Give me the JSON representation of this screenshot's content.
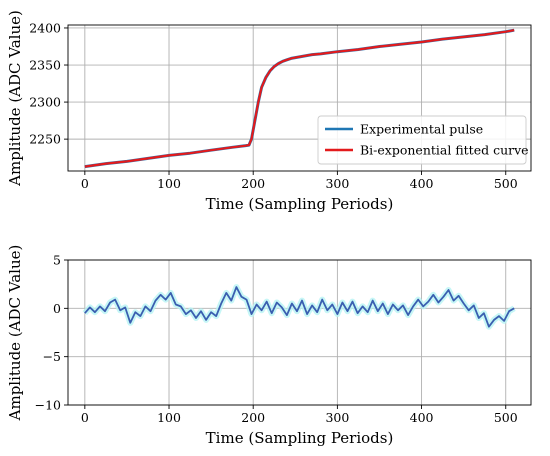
{
  "chart_data": [
    {
      "type": "line",
      "xlabel": "Time (Sampling Periods)",
      "ylabel": "Amplitude (ADC Value)",
      "xlim": [
        -20,
        530
      ],
      "ylim": [
        2207,
        2404
      ],
      "xticks": [
        0,
        100,
        200,
        300,
        400,
        500
      ],
      "yticks": [
        2250,
        2300,
        2350,
        2400
      ],
      "grid": true,
      "legend_position": "lower-right",
      "series": [
        {
          "name": "Experimental pulse",
          "color": "#1f77b4",
          "x": [
            0,
            25,
            50,
            75,
            100,
            125,
            150,
            175,
            190,
            195,
            198,
            202,
            206,
            210,
            215,
            220,
            225,
            230,
            235,
            240,
            245,
            250,
            260,
            270,
            280,
            300,
            325,
            350,
            375,
            400,
            425,
            450,
            475,
            500,
            510
          ],
          "y": [
            2213,
            2217,
            2220,
            2224,
            2228,
            2231,
            2235,
            2239,
            2241,
            2242,
            2250,
            2275,
            2300,
            2320,
            2333,
            2342,
            2348,
            2352,
            2355,
            2357,
            2359,
            2360,
            2362,
            2364,
            2365,
            2368,
            2371,
            2375,
            2378,
            2381,
            2385,
            2388,
            2391,
            2395,
            2397
          ]
        },
        {
          "name": "Bi-exponential fitted curve",
          "color": "#e31a1c",
          "x": [
            0,
            25,
            50,
            75,
            100,
            125,
            150,
            175,
            190,
            195,
            198,
            202,
            206,
            210,
            215,
            220,
            225,
            230,
            235,
            240,
            245,
            250,
            260,
            270,
            280,
            300,
            325,
            350,
            375,
            400,
            425,
            450,
            475,
            500,
            510
          ],
          "y": [
            2213,
            2217,
            2220,
            2224,
            2228,
            2231,
            2235,
            2239,
            2241,
            2242,
            2250,
            2275,
            2300,
            2320,
            2333,
            2342,
            2348,
            2352,
            2355,
            2357,
            2359,
            2360,
            2362,
            2364,
            2365,
            2368,
            2371,
            2375,
            2378,
            2381,
            2385,
            2388,
            2391,
            2395,
            2397
          ]
        }
      ]
    },
    {
      "type": "line",
      "xlabel": "Time (Sampling Periods)",
      "ylabel": "Amplitude (ADC Value)",
      "xlim": [
        -20,
        530
      ],
      "ylim": [
        -10,
        5
      ],
      "xticks": [
        0,
        100,
        200,
        300,
        400,
        500
      ],
      "yticks": [
        5,
        0,
        -5,
        -10
      ],
      "grid": true,
      "series": [
        {
          "color": "#3a5fb0",
          "band_color": "#b8f4f4",
          "x": [
            0,
            6,
            12,
            18,
            24,
            30,
            36,
            42,
            48,
            54,
            60,
            66,
            72,
            78,
            84,
            90,
            96,
            102,
            108,
            114,
            120,
            126,
            132,
            138,
            144,
            150,
            156,
            162,
            168,
            174,
            180,
            186,
            192,
            198,
            204,
            210,
            216,
            222,
            228,
            234,
            240,
            246,
            252,
            258,
            264,
            270,
            276,
            282,
            288,
            294,
            300,
            306,
            312,
            318,
            324,
            330,
            336,
            342,
            348,
            354,
            360,
            366,
            372,
            378,
            384,
            390,
            396,
            402,
            408,
            414,
            420,
            426,
            432,
            438,
            444,
            450,
            456,
            462,
            468,
            474,
            480,
            486,
            492,
            498,
            504,
            510
          ],
          "y": [
            -0.5,
            0.1,
            -0.4,
            0.2,
            -0.3,
            0.6,
            0.9,
            -0.2,
            0.1,
            -1.5,
            -0.4,
            -0.8,
            0.2,
            -0.3,
            0.8,
            1.4,
            0.9,
            1.6,
            0.4,
            0.2,
            -0.6,
            -0.2,
            -1.0,
            -0.3,
            -1.2,
            -0.4,
            -0.8,
            0.5,
            1.6,
            0.8,
            2.2,
            1.2,
            0.9,
            -0.6,
            0.4,
            -0.2,
            0.7,
            -0.5,
            0.6,
            0.1,
            -0.7,
            0.5,
            -0.3,
            0.8,
            -0.6,
            0.3,
            -0.4,
            0.9,
            -0.2,
            0.4,
            -0.6,
            0.6,
            -0.3,
            0.7,
            -0.5,
            0.2,
            -0.4,
            0.8,
            -0.3,
            0.5,
            -0.6,
            0.4,
            -0.2,
            0.3,
            -0.7,
            0.2,
            0.9,
            0.2,
            0.7,
            1.4,
            0.6,
            1.2,
            1.9,
            0.8,
            1.3,
            0.5,
            -0.2,
            0.3,
            -1.0,
            -0.5,
            -1.9,
            -1.2,
            -0.8,
            -1.3,
            -0.3,
            0.0
          ]
        }
      ]
    }
  ]
}
